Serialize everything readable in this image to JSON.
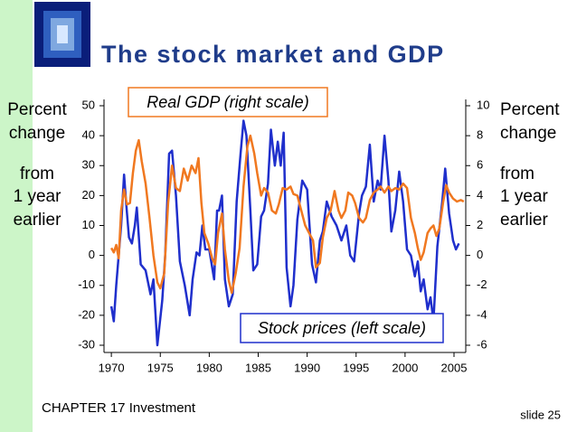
{
  "chart_data": {
    "type": "line",
    "title": "The stock market and GDP",
    "y_label": [
      "Percent",
      "change",
      "from",
      "1 year",
      "earlier"
    ],
    "y2_label": [
      "Percent",
      "change",
      "from",
      "1 year",
      "earlier"
    ],
    "annotations": [
      "Real GDP (right scale)",
      "Stock prices (left scale)"
    ],
    "xlim": [
      1969.25,
      2006.2
    ],
    "xticks": [
      1970,
      1975,
      1980,
      1985,
      1990,
      1995,
      2000,
      2005
    ],
    "ylim": [
      -30,
      50
    ],
    "yticks": [
      -30,
      -20,
      -10,
      0,
      10,
      20,
      30,
      40,
      50
    ],
    "y2lim": [
      -6,
      10
    ],
    "y2ticks": [
      -6,
      -4,
      -2,
      0,
      2,
      4,
      6,
      8,
      10
    ],
    "grid": false,
    "series": [
      {
        "name": "Stock prices",
        "color": "#1f2fcc",
        "axis": "y",
        "x": [
          1970,
          1970.25,
          1970.5,
          1971,
          1971.3,
          1971.5,
          1971.8,
          1972.1,
          1972.4,
          1972.6,
          1973,
          1973.5,
          1974,
          1974.3,
          1974.7,
          1975.2,
          1975.5,
          1975.9,
          1976.2,
          1976.6,
          1977,
          1977.5,
          1978,
          1978.3,
          1978.7,
          1979,
          1979.3,
          1979.6,
          1980,
          1980.5,
          1980.8,
          1981,
          1981.3,
          1981.6,
          1982,
          1982.4,
          1982.8,
          1983.2,
          1983.5,
          1983.8,
          1984.2,
          1984.5,
          1984.9,
          1985.3,
          1985.6,
          1986,
          1986.3,
          1986.7,
          1987,
          1987.3,
          1987.6,
          1987.9,
          1988.3,
          1988.6,
          1989,
          1989.5,
          1990,
          1990.5,
          1990.9,
          1991.3,
          1991.6,
          1992,
          1992.5,
          1993,
          1993.5,
          1994,
          1994.4,
          1994.8,
          1995.3,
          1995.6,
          1996,
          1996.4,
          1996.8,
          1997.2,
          1997.5,
          1997.9,
          1998.3,
          1998.6,
          1999,
          1999.4,
          1999.8,
          2000.2,
          2000.6,
          2001,
          2001.3,
          2001.6,
          2001.9,
          2002.3,
          2002.6,
          2002.9,
          2003.3,
          2003.8,
          2004.1,
          2004.5,
          2004.9,
          2005.2,
          2005.5
        ],
        "values": [
          -17,
          -22,
          -10,
          10,
          27,
          18,
          6,
          4,
          10,
          16,
          -3,
          -5,
          -13,
          -8,
          -30,
          -15,
          0,
          34,
          35,
          20,
          -2,
          -10,
          -20,
          -8,
          1,
          0,
          10,
          2,
          2,
          -8,
          15,
          15,
          20,
          -8,
          -17,
          -13,
          18,
          34,
          45,
          40,
          15,
          -5,
          -3,
          13,
          15,
          24,
          42,
          30,
          38,
          30,
          41,
          -4,
          -17,
          -10,
          12,
          25,
          22,
          -3,
          -9,
          5,
          8,
          18,
          13,
          10,
          5,
          10,
          0,
          -2,
          14,
          20,
          23,
          37,
          18,
          25,
          22,
          40,
          25,
          8,
          15,
          28,
          18,
          2,
          0,
          -7,
          -2,
          -12,
          -8,
          -18,
          -14,
          -22,
          3,
          18,
          29,
          14,
          5,
          2,
          4
        ]
      },
      {
        "name": "Real GDP",
        "color": "#f07820",
        "axis": "y2",
        "x": [
          1970,
          1970.25,
          1970.5,
          1970.75,
          1971,
          1971.3,
          1971.6,
          1971.9,
          1972.2,
          1972.5,
          1972.8,
          1973.1,
          1973.5,
          1973.9,
          1974.3,
          1974.7,
          1975,
          1975.4,
          1975.8,
          1976.2,
          1976.6,
          1977,
          1977.4,
          1977.8,
          1978.2,
          1978.6,
          1978.9,
          1979.2,
          1979.5,
          1979.9,
          1980.3,
          1980.6,
          1980.9,
          1981.3,
          1981.6,
          1982,
          1982.3,
          1982.7,
          1983.1,
          1983.5,
          1983.9,
          1984.2,
          1984.6,
          1984.9,
          1985.3,
          1985.6,
          1986,
          1986.4,
          1986.8,
          1987.1,
          1987.5,
          1987.9,
          1988.3,
          1988.6,
          1989,
          1989.4,
          1989.8,
          1990.2,
          1990.6,
          1990.9,
          1991.3,
          1991.6,
          1992,
          1992.4,
          1992.8,
          1993.2,
          1993.5,
          1993.9,
          1994.2,
          1994.6,
          1994.9,
          1995.3,
          1995.7,
          1996,
          1996.4,
          1996.8,
          1997.2,
          1997.5,
          1997.9,
          1998.3,
          1998.6,
          1999,
          1999.4,
          1999.8,
          2000.2,
          2000.6,
          2001,
          2001.3,
          2001.6,
          2001.9,
          2002.3,
          2002.6,
          2002.9,
          2003.2,
          2003.5,
          2003.9,
          2004.2,
          2004.5,
          2004.9,
          2005.3,
          2005.7,
          2006
        ],
        "values": [
          0.5,
          0.2,
          0.7,
          -0.2,
          3,
          4.4,
          3.4,
          3.5,
          5.5,
          7,
          7.7,
          6.3,
          4.8,
          2.5,
          0,
          -1.8,
          -2.2,
          -1.2,
          3.5,
          6,
          4.5,
          4.3,
          5.8,
          5,
          6,
          5.5,
          6.5,
          3.5,
          1.5,
          0.8,
          -0.2,
          -0.6,
          1.5,
          2.8,
          0.4,
          -1.7,
          -2.5,
          -1.2,
          0.5,
          4.6,
          7.3,
          8,
          6.8,
          5.5,
          4,
          4.5,
          4.2,
          3,
          2.8,
          3.4,
          4.5,
          4.4,
          4.6,
          4.1,
          4,
          3,
          2,
          1.5,
          1,
          -0.8,
          -0.5,
          1.2,
          2.5,
          3,
          4.3,
          3,
          2.5,
          3,
          4.2,
          4,
          3.5,
          2.5,
          2.2,
          2.5,
          3.7,
          4.2,
          4.4,
          4.6,
          4.2,
          4.6,
          4.3,
          4.5,
          4.4,
          4.8,
          4.5,
          2.5,
          1.5,
          0.5,
          -0.3,
          0.2,
          1.5,
          1.8,
          2,
          1.3,
          1.8,
          3.6,
          4.7,
          4.2,
          3.8,
          3.6,
          3.7,
          3.6
        ]
      }
    ]
  },
  "footer": {
    "chapter": "CHAPTER 17   Investment",
    "slide": "slide 25"
  }
}
